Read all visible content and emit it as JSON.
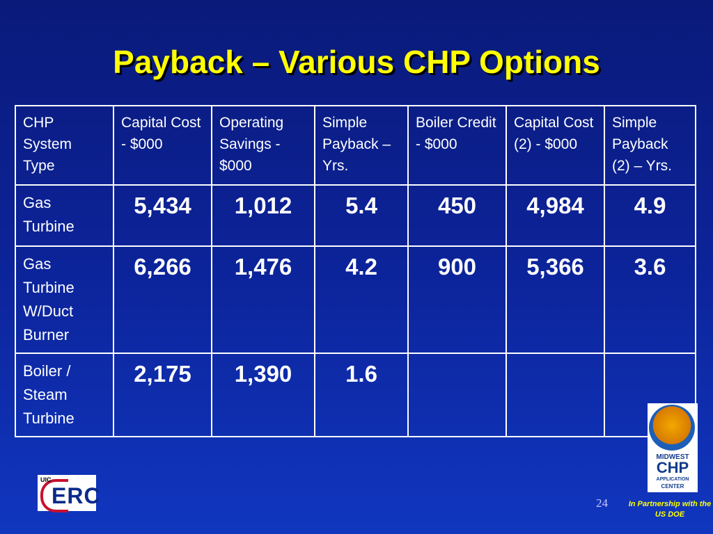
{
  "title": "Payback – Various CHP Options",
  "table": {
    "headers": [
      "CHP System Type",
      "Capital Cost - $000",
      "Operating Savings - $000",
      "Simple Payback – Yrs.",
      "Boiler Credit - $000",
      "Capital Cost (2) - $000",
      "Simple Payback (2) – Yrs."
    ],
    "rows": [
      {
        "type": "Gas Turbine",
        "values": [
          "5,434",
          "1,012",
          "5.4",
          "450",
          "4,984",
          "4.9"
        ]
      },
      {
        "type": "Gas Turbine W/Duct Burner",
        "values": [
          "6,266",
          "1,476",
          "4.2",
          "900",
          "5,366",
          "3.6"
        ]
      },
      {
        "type": "Boiler / Steam Turbine",
        "values": [
          "2,175",
          "1,390",
          "1.6",
          "",
          "",
          ""
        ]
      }
    ]
  },
  "footer": {
    "page_number": "24",
    "partnership": "In Partnership with the US DOE",
    "logo_left": {
      "small": "UIC",
      "main": "ERC"
    },
    "logo_right": [
      "MIDWEST",
      "CHP",
      "APPLICATION",
      "CENTER"
    ]
  }
}
